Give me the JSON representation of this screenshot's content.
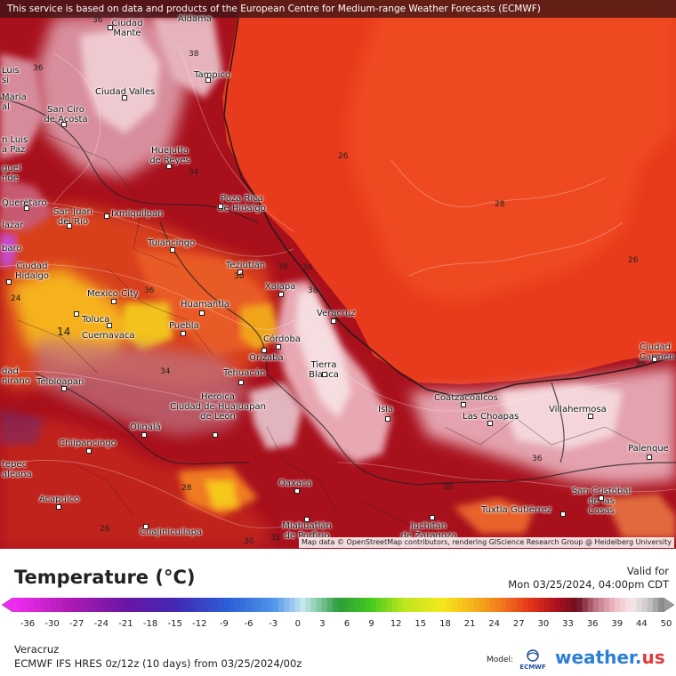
{
  "banner": "This service is based on data and products of the European Centre for Medium-range Weather Forecasts (ECMWF)",
  "attribution": "Map data © OpenStreetMap contributors, rendering GIScience Research Group @ Heidelberg University",
  "cities": [
    {
      "name": "Ciudad\nMante"
    },
    {
      "name": "Aldama"
    },
    {
      "name": "Tampico"
    },
    {
      "name": "Luis\nsi"
    },
    {
      "name": "Ciudad Valles"
    },
    {
      "name": "María\nal"
    },
    {
      "name": "San Ciro\nde Acosta"
    },
    {
      "name": "n Luis\na Paz"
    },
    {
      "name": "Huejutla\nde Reyes"
    },
    {
      "name": "guel\nnde"
    },
    {
      "name": "Poza Rica\nde Hidalgo"
    },
    {
      "name": "Querétaro"
    },
    {
      "name": "San Juan\ndel Río"
    },
    {
      "name": "Ixmiquilpan"
    },
    {
      "name": "lazar"
    },
    {
      "name": "Tulancingo"
    },
    {
      "name": "baro"
    },
    {
      "name": "Ciudad\nHidalgo"
    },
    {
      "name": "Teziutlán"
    },
    {
      "name": "Xalapa"
    },
    {
      "name": "Mexico City"
    },
    {
      "name": "Veracruz"
    },
    {
      "name": "Huamantla"
    },
    {
      "name": "Toluca"
    },
    {
      "name": "Puebla"
    },
    {
      "name": "Cuernavaca"
    },
    {
      "name": "Córdoba"
    },
    {
      "name": "Orizaba"
    },
    {
      "name": "Tierra\nBlanca"
    },
    {
      "name": "dad\nnirano"
    },
    {
      "name": "Teloloapan"
    },
    {
      "name": "Tehuacán"
    },
    {
      "name": "Ciudad\nCarmen"
    },
    {
      "name": "Coatzacoalcos"
    },
    {
      "name": "Heroica\nCiudad de Huajuapan\nde León"
    },
    {
      "name": "Isla"
    },
    {
      "name": "Las Choapas"
    },
    {
      "name": "Villahermosa"
    },
    {
      "name": "Olinalá"
    },
    {
      "name": "Chilpancingo"
    },
    {
      "name": "Palenque"
    },
    {
      "name": "tepec\naleana"
    },
    {
      "name": "Oaxaca"
    },
    {
      "name": "San Cristóbal\nde las\nCasas"
    },
    {
      "name": "Acapulco"
    },
    {
      "name": "Tuxtla Gutiérrez"
    },
    {
      "name": "Cuajinicuilapa"
    },
    {
      "name": "Miahuatlán\nde Porfirio"
    },
    {
      "name": "Juchitán\nde Zaragoza"
    }
  ],
  "isotherm_labels": [
    "36",
    "38",
    "36",
    "34",
    "26",
    "28",
    "26",
    "36",
    "38",
    "38",
    "30",
    "36",
    "38",
    "24",
    "14",
    "36",
    "30",
    "26",
    "28",
    "34",
    "30",
    "32"
  ],
  "legend": {
    "title": "Temperature (°C)",
    "valid_label": "Valid for",
    "valid_time": "Mon 03/25/2024, 04:00pm CDT",
    "ticks": [
      "-36",
      "-30",
      "-27",
      "-24",
      "-21",
      "-18",
      "-15",
      "-12",
      "-9",
      "-6",
      "-3",
      "0",
      "3",
      "6",
      "9",
      "12",
      "15",
      "18",
      "21",
      "24",
      "27",
      "30",
      "33",
      "36",
      "39",
      "44",
      "50"
    ],
    "location": "Veracruz",
    "model_run": "ECMWF IFS HRES 0z/12z (10 days) from 03/25/2024/00z",
    "model_label": "Model:",
    "model_logo_text": "ECMWF",
    "brand": "weather.",
    "brand_suffix": "us"
  },
  "colors": {
    "gulf": "#e83a1c",
    "gulf_deep": "#d42616",
    "land_hot": "#9c0d1a",
    "land_highland": "#e85a28",
    "coast_pink": "#f0c0c8",
    "valley_yellow": "#f6b21c"
  }
}
